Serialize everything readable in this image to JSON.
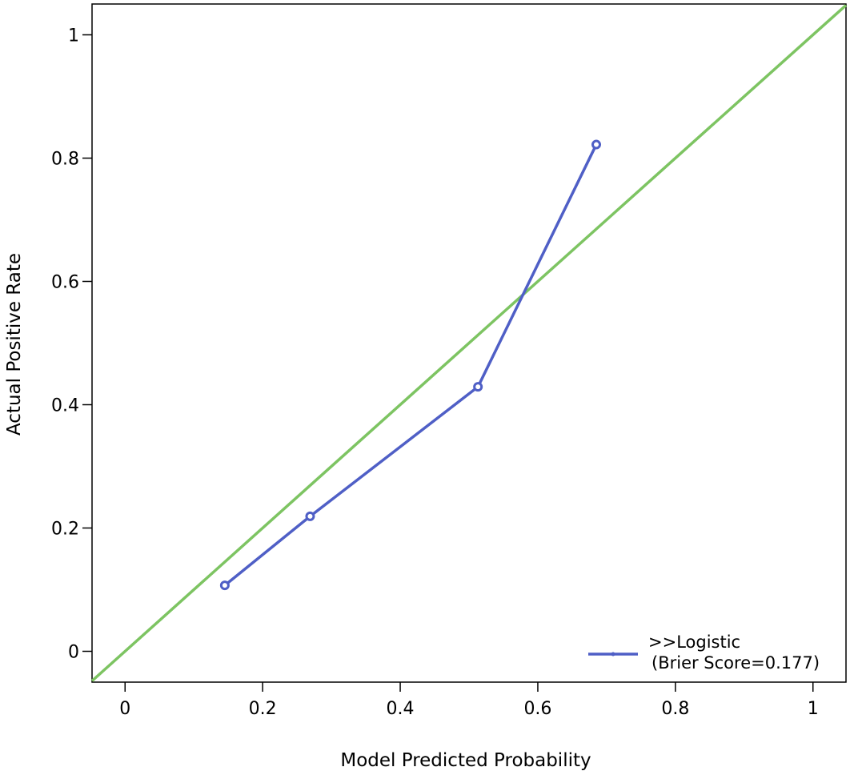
{
  "chart_data": {
    "type": "line",
    "xlabel": "Model Predicted Probability",
    "ylabel": "Actual Positive Rate",
    "xlim": [
      -0.048,
      1.048
    ],
    "ylim": [
      -0.05,
      1.05
    ],
    "x_ticks": [
      0,
      0.2,
      0.4,
      0.6,
      0.8,
      1
    ],
    "x_tick_labels": [
      "0",
      "0.2",
      "0.4",
      "0.6",
      "0.8",
      "1"
    ],
    "y_ticks": [
      0,
      0.2,
      0.4,
      0.6,
      0.8,
      1
    ],
    "y_tick_labels": [
      "0",
      "0.2",
      "0.4",
      "0.6",
      "0.8",
      "1"
    ],
    "grid": false,
    "legend_position": "bottom-right",
    "series": [
      {
        "name": ">>Logistic",
        "legend_subtitle": "(Brier Score=0.177)",
        "x": [
          0.145,
          0.269,
          0.513,
          0.685
        ],
        "y": [
          0.107,
          0.219,
          0.429,
          0.822
        ],
        "color": "#4f5fc6",
        "marker": "circle"
      }
    ],
    "reference_line": {
      "x": [
        -0.048,
        1.048
      ],
      "y": [
        -0.048,
        1.048
      ],
      "color": "#7dc462"
    }
  }
}
